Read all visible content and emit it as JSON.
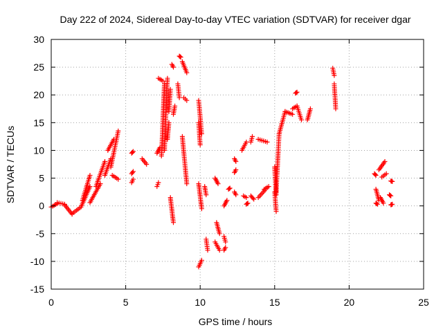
{
  "chart_data": {
    "type": "scatter",
    "title": "Day 222 of 2024, Sidereal Day-to-day VTEC variation (SDTVAR) for receiver dgar",
    "xlabel": "GPS time / hours",
    "ylabel": "SDTVAR / TECUs",
    "xlim": [
      0,
      25
    ],
    "ylim": [
      -15,
      30
    ],
    "x_ticks": [
      "0",
      "5",
      "10",
      "15",
      "20",
      "25"
    ],
    "y_ticks": [
      "-15",
      "-10",
      "-5",
      "0",
      "5",
      "10",
      "15",
      "20",
      "25",
      "30"
    ],
    "grid": true,
    "marker": "+",
    "color": "#ff0000",
    "segments": [
      {
        "x0": 0.0,
        "y0": -0.2,
        "x1": 0.4,
        "y1": 0.4
      },
      {
        "x0": 0.4,
        "y0": 0.6,
        "x1": 0.9,
        "y1": 0.3
      },
      {
        "x0": 0.9,
        "y0": 0.2,
        "x1": 1.4,
        "y1": -1.5
      },
      {
        "x0": 1.4,
        "y0": -1.4,
        "x1": 1.9,
        "y1": -0.4
      },
      {
        "x0": 2.0,
        "y0": -0.2,
        "x1": 2.6,
        "y1": 3.5
      },
      {
        "x0": 2.1,
        "y0": 1.0,
        "x1": 2.6,
        "y1": 5.5
      },
      {
        "x0": 2.6,
        "y0": 0.6,
        "x1": 3.3,
        "y1": 4.0
      },
      {
        "x0": 3.0,
        "y0": 3.5,
        "x1": 3.6,
        "y1": 8.0
      },
      {
        "x0": 3.6,
        "y0": 5.5,
        "x1": 4.0,
        "y1": 8.5
      },
      {
        "x0": 3.8,
        "y0": 10.0,
        "x1": 4.2,
        "y1": 12.0
      },
      {
        "x0": 4.0,
        "y0": 7.0,
        "x1": 4.5,
        "y1": 13.5
      },
      {
        "x0": 4.1,
        "y0": 5.5,
        "x1": 4.5,
        "y1": 4.8
      },
      {
        "x0": 5.4,
        "y0": 4.2,
        "x1": 5.5,
        "y1": 4.8
      },
      {
        "x0": 5.4,
        "y0": 5.8,
        "x1": 5.5,
        "y1": 6.2
      },
      {
        "x0": 5.4,
        "y0": 9.5,
        "x1": 5.5,
        "y1": 9.8
      },
      {
        "x0": 6.1,
        "y0": 8.5,
        "x1": 6.4,
        "y1": 7.5
      },
      {
        "x0": 7.1,
        "y0": 9.5,
        "x1": 7.3,
        "y1": 10.5
      },
      {
        "x0": 7.1,
        "y0": 3.5,
        "x1": 7.2,
        "y1": 4.2
      },
      {
        "x0": 7.2,
        "y0": 23.0,
        "x1": 7.5,
        "y1": 22.5
      },
      {
        "x0": 7.4,
        "y0": 9.0,
        "x1": 7.6,
        "y1": 22.0
      },
      {
        "x0": 7.6,
        "y0": 10.0,
        "x1": 7.8,
        "y1": 23.0
      },
      {
        "x0": 7.8,
        "y0": 12.0,
        "x1": 7.9,
        "y1": 15.0
      },
      {
        "x0": 7.9,
        "y0": 17.0,
        "x1": 8.0,
        "y1": 21.0
      },
      {
        "x0": 8.0,
        "y0": 1.5,
        "x1": 8.2,
        "y1": -3.0
      },
      {
        "x0": 8.1,
        "y0": 25.5,
        "x1": 8.2,
        "y1": 25.0
      },
      {
        "x0": 8.2,
        "y0": 16.5,
        "x1": 8.3,
        "y1": 18.0
      },
      {
        "x0": 8.5,
        "y0": 22.0,
        "x1": 8.6,
        "y1": 19.5
      },
      {
        "x0": 8.6,
        "y0": 27.0,
        "x1": 8.7,
        "y1": 26.8
      },
      {
        "x0": 8.8,
        "y0": 26.0,
        "x1": 9.1,
        "y1": 24.0
      },
      {
        "x0": 8.8,
        "y0": 12.5,
        "x1": 9.1,
        "y1": 4.0
      },
      {
        "x0": 8.9,
        "y0": 19.5,
        "x1": 9.1,
        "y1": 19.0
      },
      {
        "x0": 9.9,
        "y0": 19.0,
        "x1": 10.1,
        "y1": 13.0
      },
      {
        "x0": 9.9,
        "y0": 15.0,
        "x1": 10.0,
        "y1": 11.0
      },
      {
        "x0": 9.9,
        "y0": 4.0,
        "x1": 10.1,
        "y1": -0.5
      },
      {
        "x0": 9.9,
        "y0": -11.0,
        "x1": 10.1,
        "y1": -9.8
      },
      {
        "x0": 10.3,
        "y0": 3.5,
        "x1": 10.4,
        "y1": 2.0
      },
      {
        "x0": 10.4,
        "y0": -6.0,
        "x1": 10.5,
        "y1": -8.0
      },
      {
        "x0": 11.0,
        "y0": 5.0,
        "x1": 11.2,
        "y1": 4.0
      },
      {
        "x0": 11.0,
        "y0": -6.5,
        "x1": 11.3,
        "y1": -8.0
      },
      {
        "x0": 11.1,
        "y0": -3.0,
        "x1": 11.3,
        "y1": -5.0
      },
      {
        "x0": 11.6,
        "y0": 0.0,
        "x1": 11.8,
        "y1": 1.0
      },
      {
        "x0": 11.6,
        "y0": -5.5,
        "x1": 11.7,
        "y1": -6.5
      },
      {
        "x0": 11.6,
        "y0": -8.0,
        "x1": 11.7,
        "y1": -7.5
      },
      {
        "x0": 11.9,
        "y0": 3.0,
        "x1": 12.0,
        "y1": 3.2
      },
      {
        "x0": 12.3,
        "y0": 6.0,
        "x1": 12.4,
        "y1": 6.5
      },
      {
        "x0": 12.3,
        "y0": 8.5,
        "x1": 12.4,
        "y1": 8.0
      },
      {
        "x0": 12.3,
        "y0": 2.5,
        "x1": 12.4,
        "y1": 2.0
      },
      {
        "x0": 12.8,
        "y0": 10.0,
        "x1": 13.1,
        "y1": 11.5
      },
      {
        "x0": 12.9,
        "y0": 1.8,
        "x1": 13.1,
        "y1": 1.5
      },
      {
        "x0": 13.1,
        "y0": 0.3,
        "x1": 13.2,
        "y1": 0.5
      },
      {
        "x0": 13.4,
        "y0": 11.5,
        "x1": 13.5,
        "y1": 12.5
      },
      {
        "x0": 13.4,
        "y0": 1.8,
        "x1": 13.6,
        "y1": 1.2
      },
      {
        "x0": 13.9,
        "y0": 12.0,
        "x1": 14.5,
        "y1": 11.5
      },
      {
        "x0": 13.9,
        "y0": 1.5,
        "x1": 14.4,
        "y1": 3.0
      },
      {
        "x0": 14.3,
        "y0": 3.0,
        "x1": 14.6,
        "y1": 3.5
      },
      {
        "x0": 15.0,
        "y0": 7.0,
        "x1": 15.1,
        "y1": 2.0
      },
      {
        "x0": 15.0,
        "y0": 2.5,
        "x1": 15.1,
        "y1": -1.0
      },
      {
        "x0": 15.1,
        "y0": 2.5,
        "x1": 15.3,
        "y1": 13.0
      },
      {
        "x0": 15.3,
        "y0": 13.0,
        "x1": 15.7,
        "y1": 17.0
      },
      {
        "x0": 15.7,
        "y0": 17.0,
        "x1": 16.2,
        "y1": 16.5
      },
      {
        "x0": 16.2,
        "y0": 17.5,
        "x1": 16.5,
        "y1": 18.0
      },
      {
        "x0": 16.4,
        "y0": 20.3,
        "x1": 16.5,
        "y1": 20.5
      },
      {
        "x0": 16.5,
        "y0": 18.0,
        "x1": 16.8,
        "y1": 15.5
      },
      {
        "x0": 17.2,
        "y0": 15.5,
        "x1": 17.4,
        "y1": 17.5
      },
      {
        "x0": 18.9,
        "y0": 24.8,
        "x1": 19.0,
        "y1": 23.5
      },
      {
        "x0": 19.0,
        "y0": 22.0,
        "x1": 19.1,
        "y1": 17.5
      },
      {
        "x0": 21.7,
        "y0": 5.8,
        "x1": 21.8,
        "y1": 5.5
      },
      {
        "x0": 21.8,
        "y0": 3.0,
        "x1": 22.0,
        "y1": 1.0
      },
      {
        "x0": 21.8,
        "y0": 0.5,
        "x1": 21.9,
        "y1": 0.3
      },
      {
        "x0": 22.0,
        "y0": 6.5,
        "x1": 22.4,
        "y1": 8.0
      },
      {
        "x0": 22.2,
        "y0": 5.2,
        "x1": 22.5,
        "y1": 5.8
      },
      {
        "x0": 22.1,
        "y0": 1.5,
        "x1": 22.3,
        "y1": 0.5
      },
      {
        "x0": 22.7,
        "y0": 2.0,
        "x1": 22.8,
        "y1": 1.8
      },
      {
        "x0": 22.8,
        "y0": 0.2,
        "x1": 22.9,
        "y1": 0.3
      },
      {
        "x0": 22.8,
        "y0": 4.5,
        "x1": 22.9,
        "y1": 4.4
      }
    ]
  }
}
